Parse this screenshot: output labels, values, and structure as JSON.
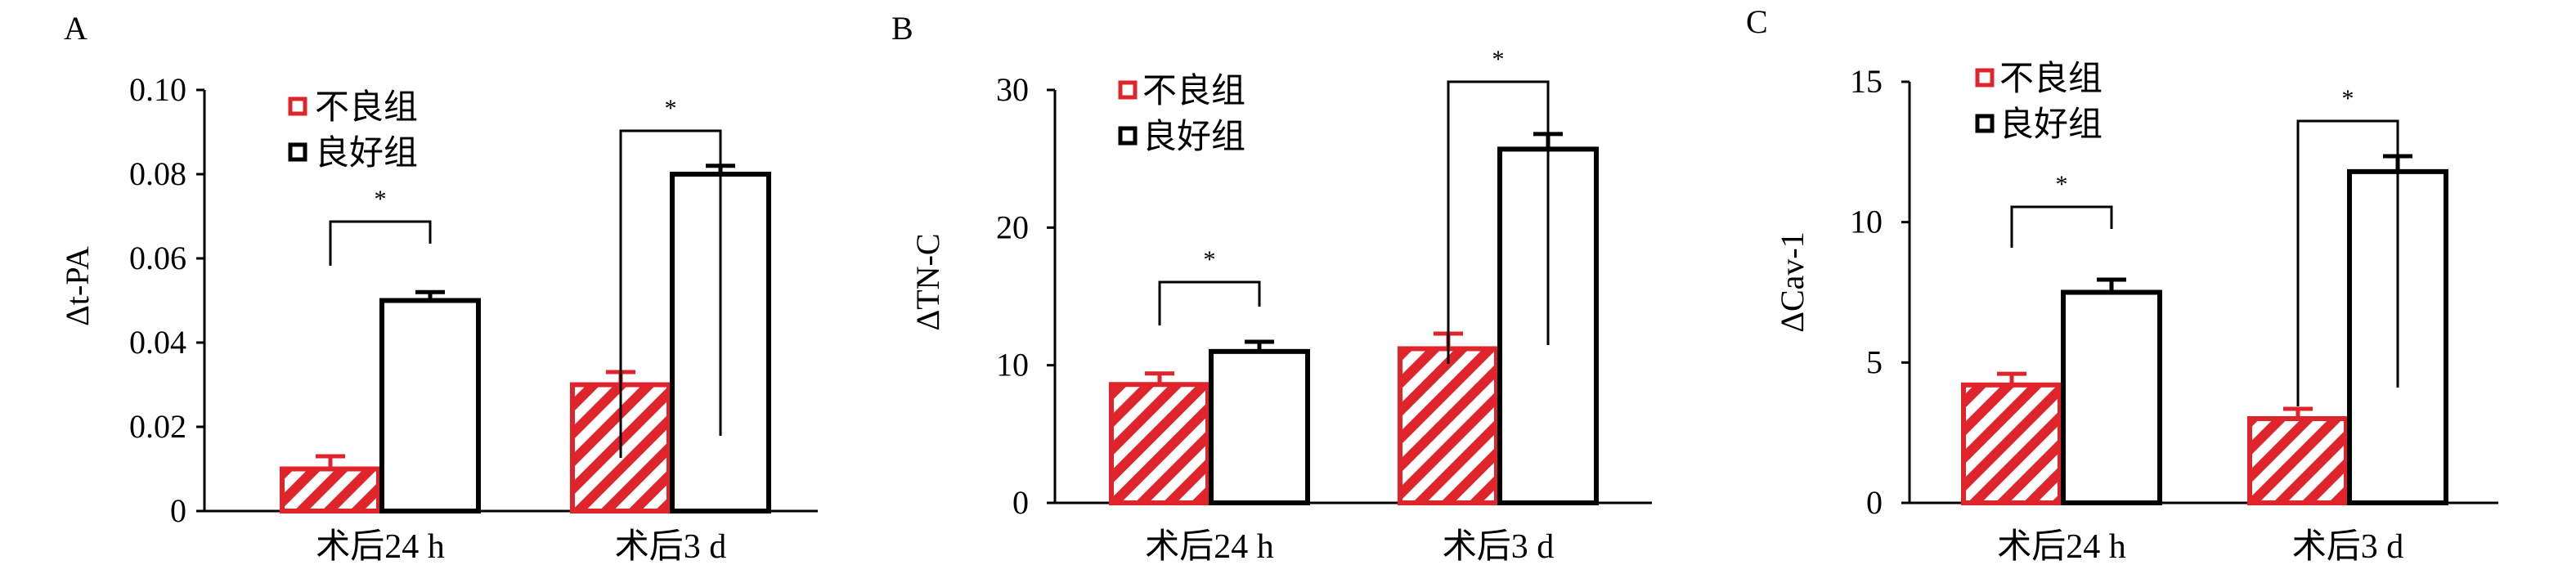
{
  "colors": {
    "poor": "#e0242b",
    "good": "#000000",
    "axis": "#000000"
  },
  "chart_data": [
    {
      "type": "bar",
      "panel_label": "A",
      "ylabel": "Δt-PA",
      "ylim": [
        0,
        0.1
      ],
      "yticks": [
        0,
        0.02,
        0.04,
        0.06,
        0.08,
        0.1
      ],
      "ytick_labels": [
        "0",
        "0.02",
        "0.04",
        "0.06",
        "0.08",
        "0.10"
      ],
      "categories": [
        "术后24 h",
        "术后3 d"
      ],
      "series": [
        {
          "name": "不良组",
          "style": "hatched-red",
          "values": [
            0.01,
            0.03
          ],
          "errors": [
            0.003,
            0.003
          ]
        },
        {
          "name": "良好组",
          "style": "open-black",
          "values": [
            0.05,
            0.08
          ],
          "errors": [
            0.002,
            0.002
          ]
        }
      ],
      "significance": [
        "*",
        "*"
      ],
      "legend_position": "top-center"
    },
    {
      "type": "bar",
      "panel_label": "B",
      "ylabel": "ΔTN-C",
      "ylim": [
        0,
        30
      ],
      "yticks": [
        0,
        10,
        20,
        30
      ],
      "ytick_labels": [
        "0",
        "10",
        "20",
        "30"
      ],
      "categories": [
        "术后24 h",
        "术后3 d"
      ],
      "series": [
        {
          "name": "不良组",
          "style": "hatched-red",
          "values": [
            8.6,
            11.2
          ],
          "errors": [
            0.8,
            1.1
          ]
        },
        {
          "name": "良好组",
          "style": "open-black",
          "values": [
            11.0,
            25.7
          ],
          "errors": [
            0.7,
            1.1
          ]
        }
      ],
      "significance": [
        "*",
        "*"
      ],
      "legend_position": "top-center"
    },
    {
      "type": "bar",
      "panel_label": "C",
      "ylabel": "ΔCav-1",
      "ylim": [
        0,
        15
      ],
      "yticks": [
        0,
        5,
        10,
        15
      ],
      "ytick_labels": [
        "0",
        "5",
        "10",
        "15"
      ],
      "categories": [
        "术后24 h",
        "术后3 d"
      ],
      "series": [
        {
          "name": "不良组",
          "style": "hatched-red",
          "values": [
            4.2,
            3.0
          ],
          "errors": [
            0.4,
            0.35
          ]
        },
        {
          "name": "良好组",
          "style": "open-black",
          "values": [
            7.5,
            11.8
          ],
          "errors": [
            0.45,
            0.55
          ]
        }
      ],
      "significance": [
        "*",
        "*"
      ],
      "legend_position": "top-center"
    }
  ]
}
